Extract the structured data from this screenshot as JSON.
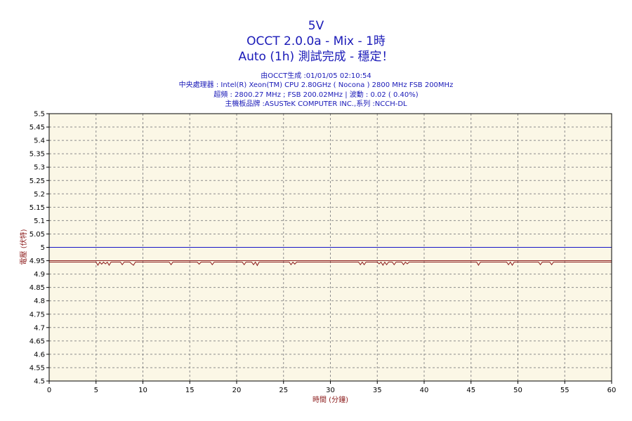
{
  "header": {
    "title": "5V",
    "subtitle": "OCCT 2.0.0a - Mix - 1時",
    "status": "Auto (1h) 測試完成 - 穩定！"
  },
  "info": {
    "generated": "由OCCT生成 :01/01/05 02:10:54",
    "cpu": "中央處理器 : Intel(R) Xeon(TM) CPU 2.80GHz ( Nocona ) 2800 MHz FSB 200MHz",
    "freq": "超頻 : 2800.27 MHz ; FSB 200.02MHz | 波動 : 0.02 ( 0.40%)",
    "board": "主機板品牌 :ASUSTeK COMPUTER INC.,系列 :NCCH-DL"
  },
  "colors": {
    "plot_background": "#fbf7e6",
    "grid": "#8c8c8c",
    "reference_line": "#1414c8",
    "voltage_line": "#8b1a1a",
    "title_text": "#1a1ab8",
    "axis_label_text": "#8b1a1a"
  },
  "chart_data": {
    "type": "line",
    "xlabel": "時間 (分鐘)",
    "ylabel": "電壓 (伏特)",
    "xlim": [
      0,
      60
    ],
    "ylim": [
      4.5,
      5.5
    ],
    "x_ticks": [
      0,
      5,
      10,
      15,
      20,
      25,
      30,
      35,
      40,
      45,
      50,
      55,
      60
    ],
    "y_ticks": [
      4.5,
      4.55,
      4.6,
      4.65,
      4.7,
      4.75,
      4.8,
      4.85,
      4.9,
      4.95,
      5,
      5.05,
      5.1,
      5.15,
      5.2,
      5.25,
      5.3,
      5.35,
      5.4,
      5.45,
      5.5
    ],
    "grid": true,
    "reference_value": 5.0,
    "series": [
      {
        "values_x": [
          0,
          5.0,
          5.2,
          5.4,
          5.6,
          5.8,
          6.0,
          6.2,
          6.4,
          6.6,
          6.8,
          7.6,
          7.8,
          8.0,
          8.6,
          8.8,
          9.0,
          9.2,
          9.4,
          12.8,
          13.0,
          13.2,
          15.8,
          16.0,
          16.2,
          17.2,
          17.4,
          17.6,
          20.6,
          20.8,
          21.0,
          21.6,
          21.8,
          22.0,
          22.2,
          22.4,
          25.6,
          25.8,
          26.0,
          26.2,
          26.4,
          26.6,
          33.0,
          33.2,
          33.4,
          33.6,
          33.8,
          35.0,
          35.2,
          35.4,
          35.6,
          35.8,
          36.0,
          36.2,
          36.6,
          36.8,
          37.0,
          37.6,
          37.8,
          38.0,
          38.2,
          38.4,
          45.6,
          45.8,
          46.0,
          48.8,
          49.0,
          49.2,
          49.4,
          49.6,
          49.8,
          52.2,
          52.4,
          52.6,
          53.4,
          53.6,
          53.8,
          60
        ],
        "values_y": [
          4.945,
          4.945,
          4.933,
          4.945,
          4.937,
          4.945,
          4.938,
          4.945,
          4.933,
          4.945,
          4.945,
          4.945,
          4.935,
          4.945,
          4.945,
          4.938,
          4.933,
          4.945,
          4.945,
          4.945,
          4.935,
          4.945,
          4.945,
          4.937,
          4.945,
          4.945,
          4.935,
          4.945,
          4.945,
          4.935,
          4.945,
          4.945,
          4.935,
          4.945,
          4.932,
          4.945,
          4.945,
          4.935,
          4.945,
          4.937,
          4.945,
          4.945,
          4.945,
          4.935,
          4.945,
          4.935,
          4.945,
          4.945,
          4.938,
          4.945,
          4.933,
          4.945,
          4.935,
          4.945,
          4.945,
          4.935,
          4.945,
          4.945,
          4.935,
          4.945,
          4.938,
          4.945,
          4.945,
          4.933,
          4.945,
          4.945,
          4.935,
          4.945,
          4.933,
          4.945,
          4.945,
          4.945,
          4.935,
          4.945,
          4.945,
          4.935,
          4.945,
          4.945
        ]
      }
    ]
  }
}
